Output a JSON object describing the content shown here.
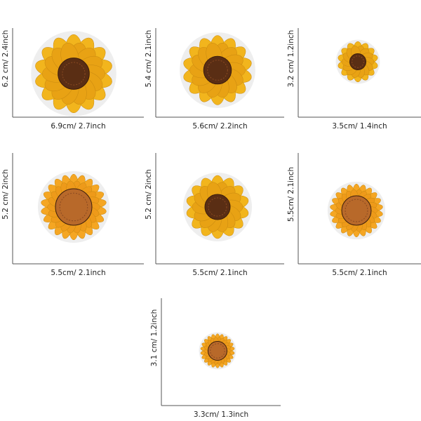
{
  "items": [
    {
      "height": "6.2 cm/ 2.4inch",
      "width": "6.9cm/ 2.7inch"
    },
    {
      "height": "5.4 cm/ 2.1inch",
      "width": "5.6cm/ 2.2inch"
    },
    {
      "height": "3.2 cm/ 1.2inch",
      "width": "3.5cm/ 1.4inch"
    },
    {
      "height": "5.2 cm/ 2inch",
      "width": "5.5cm/ 2.1inch"
    },
    {
      "height": "5.2 cm/ 2inch",
      "width": "5.5cm/ 2.1inch"
    },
    {
      "height": "5.5cm/ 2.1inch",
      "width": "5.5cm/ 2.1inch"
    },
    {
      "height": "3.1 cm/ 1.2inch",
      "width": "3.3cm/ 1.3inch"
    }
  ]
}
